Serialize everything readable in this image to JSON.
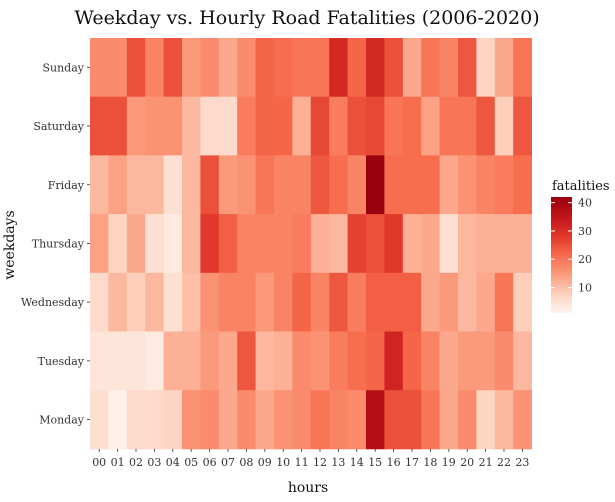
{
  "chart_data": {
    "type": "heatmap",
    "title": "Weekday vs. Hourly Road Fatalities (2006-2020)",
    "xlabel": "hours",
    "ylabel": "weekdays",
    "x_categories": [
      "00",
      "01",
      "02",
      "03",
      "04",
      "05",
      "06",
      "07",
      "08",
      "09",
      "10",
      "11",
      "12",
      "13",
      "14",
      "15",
      "16",
      "17",
      "18",
      "19",
      "20",
      "21",
      "22",
      "23"
    ],
    "y_categories": [
      "Sunday",
      "Saturday",
      "Friday",
      "Thursday",
      "Wednesday",
      "Tuesday",
      "Monday"
    ],
    "values": [
      [
        17,
        17,
        25,
        18,
        25,
        15,
        17,
        13,
        17,
        22,
        21,
        20,
        20,
        31,
        22,
        31,
        25,
        13,
        20,
        18,
        24,
        7,
        13,
        20
      ],
      [
        25,
        25,
        15,
        16,
        16,
        11,
        6,
        6,
        19,
        22,
        22,
        12,
        26,
        19,
        25,
        26,
        20,
        21,
        14,
        20,
        20,
        24,
        8,
        24
      ],
      [
        11,
        14,
        11,
        11,
        5,
        11,
        25,
        15,
        16,
        20,
        18,
        18,
        24,
        21,
        18,
        42,
        21,
        21,
        21,
        13,
        16,
        18,
        19,
        21
      ],
      [
        14,
        7,
        13,
        5,
        3,
        11,
        28,
        23,
        18,
        18,
        18,
        19,
        12,
        11,
        27,
        25,
        28,
        12,
        13,
        5,
        11,
        12,
        12,
        12
      ],
      [
        6,
        11,
        8,
        11,
        5,
        10,
        16,
        18,
        18,
        15,
        18,
        22,
        18,
        24,
        19,
        23,
        23,
        23,
        13,
        15,
        11,
        13,
        20,
        8
      ],
      [
        4,
        4,
        4,
        3,
        12,
        12,
        15,
        13,
        24,
        11,
        12,
        17,
        16,
        19,
        21,
        22,
        32,
        22,
        18,
        13,
        15,
        15,
        17,
        11
      ],
      [
        5,
        2,
        6,
        6,
        7,
        16,
        17,
        13,
        17,
        13,
        16,
        17,
        20,
        18,
        17,
        37,
        25,
        25,
        20,
        13,
        17,
        7,
        11,
        16
      ]
    ],
    "color_scale": {
      "low": "#fff5f0",
      "high": "#99000d",
      "min": 1,
      "max": 42
    },
    "legend": {
      "title": "fatalities",
      "ticks": [
        10,
        20,
        30,
        40
      ],
      "placement": "right"
    },
    "grid": false
  }
}
